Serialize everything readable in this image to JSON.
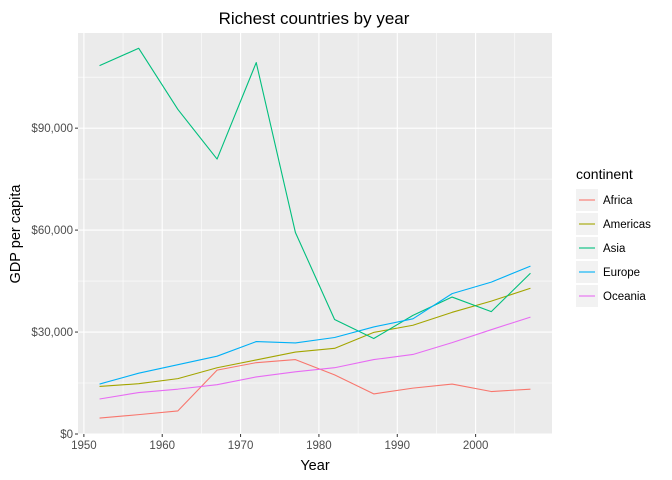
{
  "chart_data": {
    "type": "line",
    "title": "Richest countries by year",
    "xlabel": "Year",
    "ylabel": "GDP per capita",
    "x": [
      1952,
      1957,
      1962,
      1967,
      1972,
      1977,
      1982,
      1987,
      1992,
      1997,
      2002,
      2007
    ],
    "xlim": [
      1949.25,
      2009.75
    ],
    "ylim": [
      0,
      118000
    ],
    "x_ticks": [
      1950,
      1960,
      1970,
      1980,
      1990,
      2000
    ],
    "x_tick_labels": [
      "1950",
      "1960",
      "1970",
      "1980",
      "1990",
      "2000"
    ],
    "y_ticks": [
      0,
      30000,
      60000,
      90000
    ],
    "y_tick_labels": [
      "$0",
      "$30,000",
      "$60,000",
      "$90,000"
    ],
    "grid": true,
    "legend_title": "continent",
    "legend_position": "right",
    "series": [
      {
        "name": "Africa",
        "color": "#F8766D",
        "values": [
          4700,
          5700,
          6800,
          18800,
          21000,
          21900,
          17400,
          11800,
          13500,
          14700,
          12500,
          13200
        ]
      },
      {
        "name": "Americas",
        "color": "#A3A500",
        "values": [
          14000,
          14800,
          16300,
          19500,
          21800,
          24100,
          25200,
          29900,
          32000,
          35800,
          39100,
          42900
        ]
      },
      {
        "name": "Asia",
        "color": "#00BF7D",
        "values": [
          108400,
          113500,
          95500,
          80900,
          109300,
          59300,
          33700,
          28100,
          34900,
          40300,
          36000,
          47300
        ]
      },
      {
        "name": "Europe",
        "color": "#00B0F6",
        "values": [
          14700,
          17900,
          20400,
          22900,
          27200,
          26800,
          28400,
          31500,
          33900,
          41300,
          44700,
          49400
        ]
      },
      {
        "name": "Oceania",
        "color": "#E76BF3",
        "values": [
          10300,
          12200,
          13200,
          14500,
          16800,
          18300,
          19500,
          21900,
          23400,
          26900,
          30700,
          34400
        ]
      }
    ]
  }
}
